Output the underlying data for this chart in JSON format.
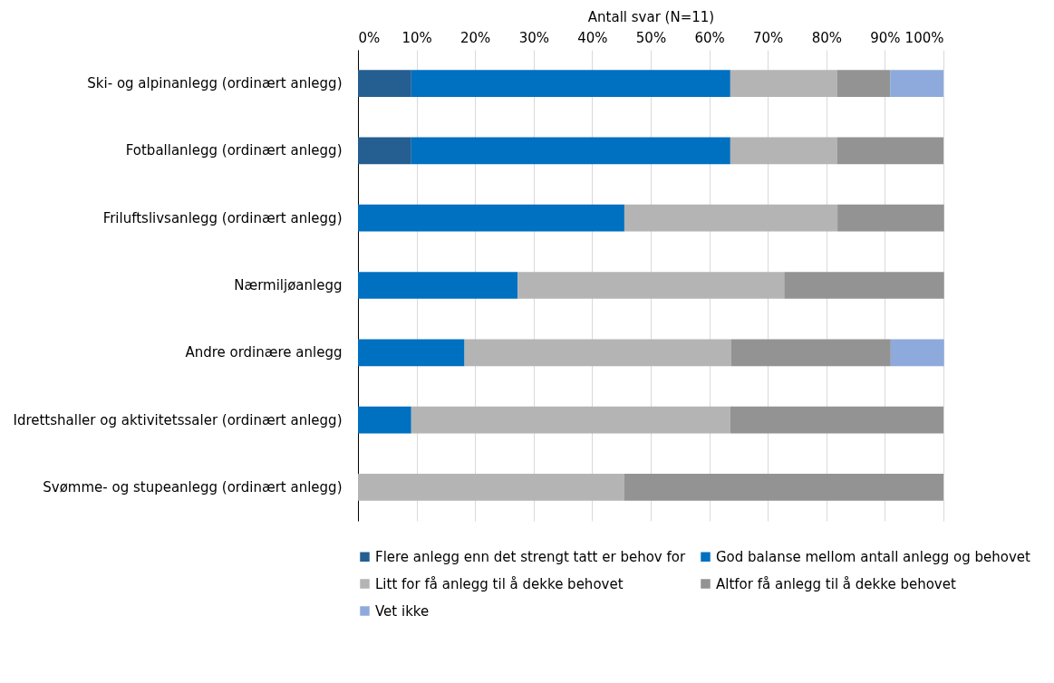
{
  "chart_data": {
    "type": "bar",
    "orientation": "horizontal",
    "stacked": true,
    "xlabel": "Antall svar (N=11)",
    "categories": [
      "Ski- og alpinanlegg (ordinært anlegg)",
      "Fotballanlegg (ordinært anlegg)",
      "Friluftslivsanlegg (ordinært anlegg)",
      "Nærmiljøanlegg",
      "Andre ordinære anlegg",
      "Idrettshaller og aktivitetssaler (ordinært anlegg)",
      "Svømme- og stupeanlegg (ordinært anlegg)"
    ],
    "series": [
      {
        "name": "Flere anlegg enn det strengt tatt er behov for",
        "color": "#255e91",
        "values": [
          9.1,
          9.1,
          0,
          0,
          0,
          0,
          0
        ]
      },
      {
        "name": "God balanse mellom antall anlegg og behovet",
        "color": "#0070c0",
        "values": [
          54.5,
          54.5,
          45.5,
          27.3,
          18.2,
          9.1,
          0
        ]
      },
      {
        "name": "Litt for få anlegg til å dekke behovet",
        "color": "#b4b4b4",
        "values": [
          18.2,
          18.2,
          36.4,
          45.5,
          45.5,
          54.5,
          45.5
        ]
      },
      {
        "name": "Altfor få anlegg til å dekke behovet",
        "color": "#939393",
        "values": [
          9.1,
          18.2,
          18.2,
          27.3,
          27.3,
          36.4,
          54.5
        ]
      },
      {
        "name": "Vet ikke",
        "color": "#8eaadc",
        "values": [
          9.1,
          0,
          0,
          0,
          9.1,
          0,
          0
        ]
      }
    ],
    "xlim": [
      0,
      100
    ],
    "xticks": [
      {
        "value": 0,
        "label": "0%"
      },
      {
        "value": 10,
        "label": "10%"
      },
      {
        "value": 20,
        "label": "20%"
      },
      {
        "value": 30,
        "label": "30%"
      },
      {
        "value": 40,
        "label": "40%"
      },
      {
        "value": 50,
        "label": "50%"
      },
      {
        "value": 60,
        "label": "60%"
      },
      {
        "value": 70,
        "label": "70%"
      },
      {
        "value": 80,
        "label": "80%"
      },
      {
        "value": 90,
        "label": "90%"
      },
      {
        "value": 100,
        "label": "100%"
      }
    ],
    "grid": "x",
    "legend": "bottom"
  }
}
